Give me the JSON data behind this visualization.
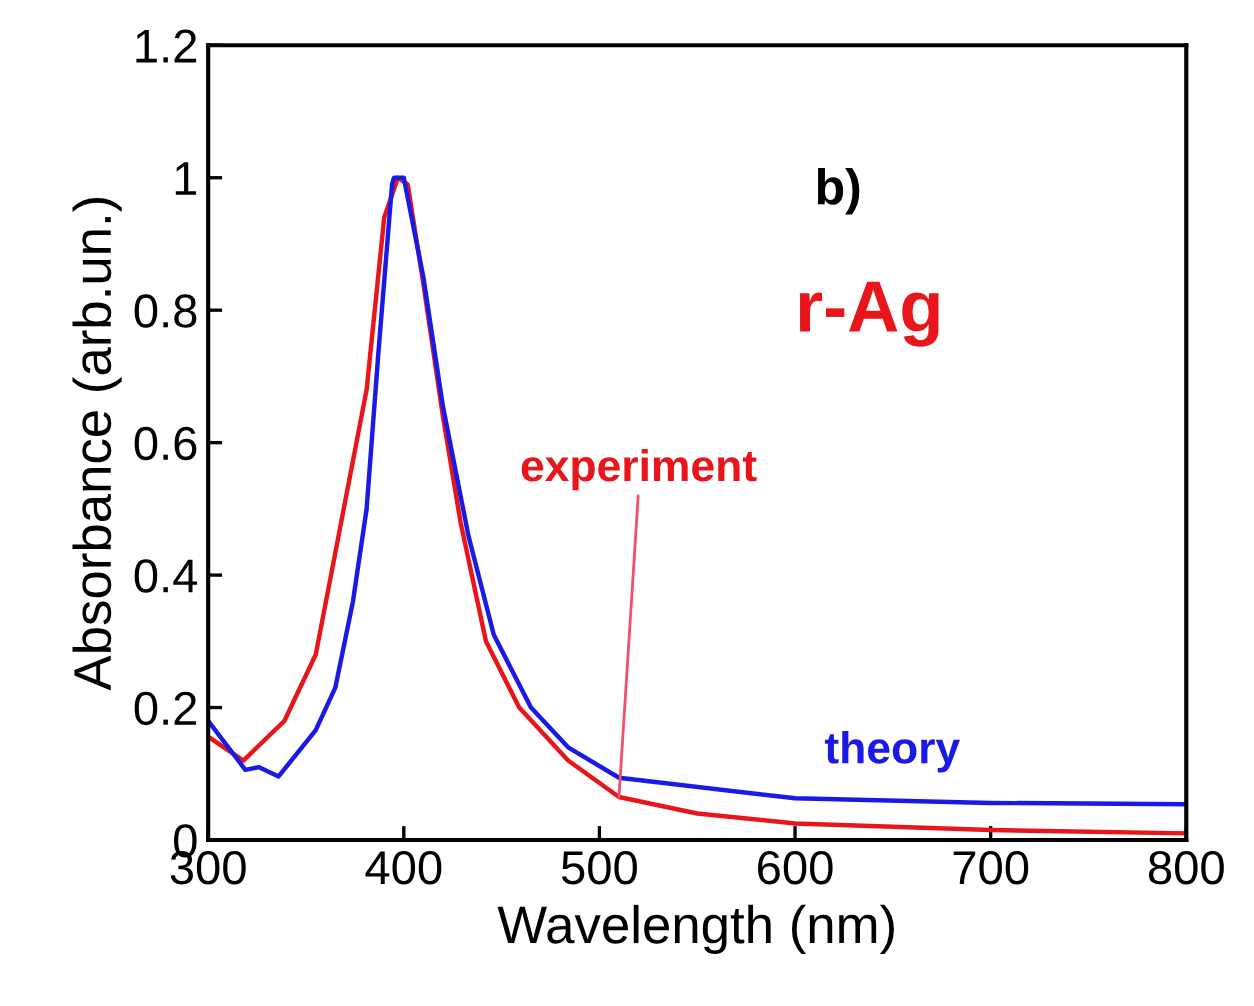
{
  "chart_data": {
    "type": "line",
    "xlabel": "Wavelength (nm)",
    "ylabel": "Absorbance (arb.un.)",
    "xlim": [
      300,
      800
    ],
    "xticks": [
      300,
      400,
      500,
      600,
      700,
      800
    ],
    "ylim": [
      0,
      1.2
    ],
    "yticks": [
      0,
      0.2,
      0.4,
      0.6,
      0.8,
      1,
      1.2
    ],
    "grid": false,
    "legend": false,
    "annotations": [
      "b)",
      "r-Ag"
    ],
    "series": [
      {
        "name": "experiment",
        "color": "#e8161b",
        "x": [
          300,
          318,
          339,
          355,
          368,
          381,
          390,
          397,
          402,
          410,
          420,
          429,
          442,
          459,
          484,
          510,
          550,
          600,
          700,
          800
        ],
        "values": [
          0.156,
          0.12,
          0.18,
          0.28,
          0.48,
          0.68,
          0.94,
          1.0,
          0.99,
          0.84,
          0.64,
          0.48,
          0.3,
          0.2,
          0.12,
          0.065,
          0.04,
          0.025,
          0.015,
          0.01
        ]
      },
      {
        "name": "theory",
        "color": "#1a1ae6",
        "x": [
          300,
          319,
          326,
          336,
          355,
          365,
          374,
          381,
          387,
          394,
          395,
          400,
          410,
          420,
          433,
          446,
          465,
          484,
          510,
          600,
          700,
          800
        ],
        "values": [
          0.18,
          0.106,
          0.11,
          0.096,
          0.166,
          0.23,
          0.36,
          0.5,
          0.735,
          0.99,
          1.0,
          1.0,
          0.85,
          0.655,
          0.46,
          0.31,
          0.2,
          0.14,
          0.094,
          0.063,
          0.056,
          0.054
        ]
      }
    ]
  }
}
